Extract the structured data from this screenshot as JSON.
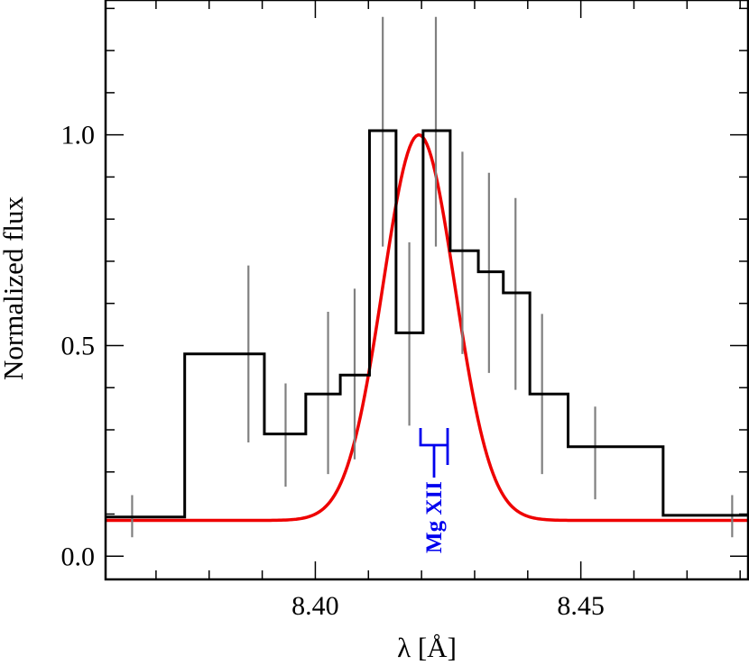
{
  "chart_data": {
    "type": "line",
    "title": "",
    "xlabel": "λ [Å]",
    "ylabel": "Normalized flux",
    "xlim": [
      8.3605,
      8.4815
    ],
    "ylim": [
      -0.055,
      1.32
    ],
    "x_ticks": [
      {
        "value": 8.4,
        "label": "8.40"
      },
      {
        "value": 8.45,
        "label": "8.45"
      }
    ],
    "y_ticks": [
      {
        "value": 0.0,
        "label": "0.0"
      },
      {
        "value": 0.5,
        "label": "0.5"
      },
      {
        "value": 1.0,
        "label": "1.0"
      }
    ],
    "x_minor_step": 0.01,
    "y_minor_step": 0.1,
    "colors": {
      "histogram": "#000000",
      "error_bars": "#808080",
      "model": "#ee0000",
      "annotation": "#0000ee"
    },
    "series": [
      {
        "style": "step-histogram",
        "bins": [
          {
            "x0": 8.3605,
            "x1": 8.3754,
            "y": 0.093
          },
          {
            "x0": 8.3754,
            "x1": 8.3904,
            "y": 0.48
          },
          {
            "x0": 8.3904,
            "x1": 8.3982,
            "y": 0.29
          },
          {
            "x0": 8.3982,
            "x1": 8.4047,
            "y": 0.385
          },
          {
            "x0": 8.4047,
            "x1": 8.4102,
            "y": 0.43
          },
          {
            "x0": 8.4102,
            "x1": 8.4152,
            "y": 1.01
          },
          {
            "x0": 8.4152,
            "x1": 8.4203,
            "y": 0.53
          },
          {
            "x0": 8.4203,
            "x1": 8.4254,
            "y": 1.01
          },
          {
            "x0": 8.4254,
            "x1": 8.4307,
            "y": 0.725
          },
          {
            "x0": 8.4307,
            "x1": 8.4354,
            "y": 0.675
          },
          {
            "x0": 8.4354,
            "x1": 8.4404,
            "y": 0.625
          },
          {
            "x0": 8.4404,
            "x1": 8.4476,
            "y": 0.385
          },
          {
            "x0": 8.4476,
            "x1": 8.4655,
            "y": 0.26
          },
          {
            "x0": 8.4655,
            "x1": 8.4815,
            "y": 0.097
          }
        ]
      },
      {
        "style": "error-bars",
        "points": [
          {
            "x": 8.3655,
            "lo": 0.045,
            "hi": 0.145
          },
          {
            "x": 8.3874,
            "lo": 0.27,
            "hi": 0.69
          },
          {
            "x": 8.3944,
            "lo": 0.165,
            "hi": 0.41
          },
          {
            "x": 8.4024,
            "lo": 0.195,
            "hi": 0.58
          },
          {
            "x": 8.4074,
            "lo": 0.23,
            "hi": 0.635
          },
          {
            "x": 8.4127,
            "lo": 0.735,
            "hi": 1.28
          },
          {
            "x": 8.4177,
            "lo": 0.31,
            "hi": 0.745
          },
          {
            "x": 8.4227,
            "lo": 0.735,
            "hi": 1.28
          },
          {
            "x": 8.4277,
            "lo": 0.48,
            "hi": 0.96
          },
          {
            "x": 8.4327,
            "lo": 0.435,
            "hi": 0.91
          },
          {
            "x": 8.4377,
            "lo": 0.395,
            "hi": 0.85
          },
          {
            "x": 8.4427,
            "lo": 0.195,
            "hi": 0.575
          },
          {
            "x": 8.4527,
            "lo": 0.135,
            "hi": 0.355
          },
          {
            "x": 8.4785,
            "lo": 0.045,
            "hi": 0.145
          }
        ]
      },
      {
        "style": "model-gaussian",
        "center": 8.4195,
        "sigma": 0.0068,
        "baseline": 0.085,
        "peak": 1.0
      }
    ],
    "annotations": [
      {
        "text": "Mg XII",
        "x": 8.4225,
        "y": 0.12
      }
    ],
    "grid": false
  }
}
